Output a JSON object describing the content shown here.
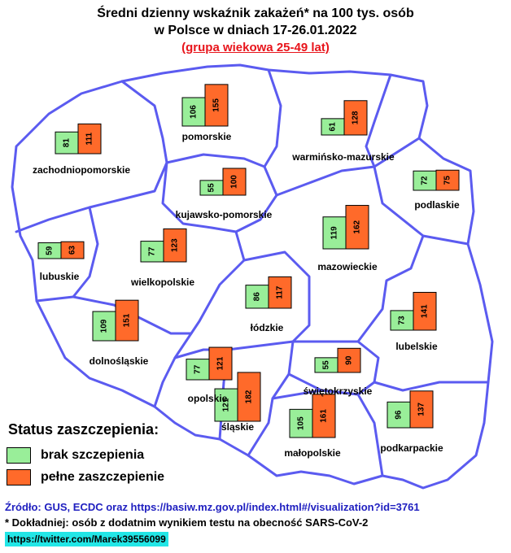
{
  "title_line1": "Średni dzienny wskaźnik zakażeń* na 100 tys. osób",
  "title_line2": "w Polsce w dniach 17-26.01.2022",
  "title_line3": "(grupa wiekowa 25-49 lat)",
  "colors": {
    "unvaccinated": "#99ee99",
    "vaccinated": "#ff6a2a",
    "border": "#5b5bf0",
    "subtitle": "#e8141b",
    "source": "#2020c0",
    "twitter_bg": "#22e6e6"
  },
  "legend": {
    "title": "Status zaszczepienia:",
    "unvaccinated_label": "brak szczepienia",
    "vaccinated_label": "pełne zaszczepienie"
  },
  "source_text": "Źródło: GUS, ECDC oraz https://basiw.mz.gov.pl/index.html#/visualization?id=3761",
  "note_text": "* Dokładniej: osób z dodatnim wynikiem testu na obecność SARS-CoV-2",
  "twitter_text": "https://twitter.com/Marek39556099",
  "chart_data": {
    "type": "bar",
    "series": [
      {
        "name": "brak szczepienia"
      },
      {
        "name": "pełne zaszczepienie"
      }
    ],
    "regions": [
      {
        "name": "pomorskie",
        "unvaccinated": 106,
        "vaccinated": 155
      },
      {
        "name": "zachodniopomorskie",
        "unvaccinated": 81,
        "vaccinated": 111
      },
      {
        "name": "warmińsko-mazurskie",
        "unvaccinated": 61,
        "vaccinated": 128
      },
      {
        "name": "podlaskie",
        "unvaccinated": 72,
        "vaccinated": 75
      },
      {
        "name": "kujawsko-pomorskie",
        "unvaccinated": 55,
        "vaccinated": 100
      },
      {
        "name": "mazowieckie",
        "unvaccinated": 119,
        "vaccinated": 162
      },
      {
        "name": "lubuskie",
        "unvaccinated": 59,
        "vaccinated": 63
      },
      {
        "name": "wielkopolskie",
        "unvaccinated": 77,
        "vaccinated": 123
      },
      {
        "name": "łódzkie",
        "unvaccinated": 86,
        "vaccinated": 117
      },
      {
        "name": "lubelskie",
        "unvaccinated": 73,
        "vaccinated": 141
      },
      {
        "name": "dolnośląskie",
        "unvaccinated": 109,
        "vaccinated": 151
      },
      {
        "name": "świętokrzyskie",
        "unvaccinated": 55,
        "vaccinated": 90
      },
      {
        "name": "opolskie",
        "unvaccinated": 77,
        "vaccinated": 121
      },
      {
        "name": "śląskie",
        "unvaccinated": 121,
        "vaccinated": 182
      },
      {
        "name": "małopolskie",
        "unvaccinated": 105,
        "vaccinated": 161
      },
      {
        "name": "podkarpackie",
        "unvaccinated": 96,
        "vaccinated": 137
      }
    ]
  }
}
